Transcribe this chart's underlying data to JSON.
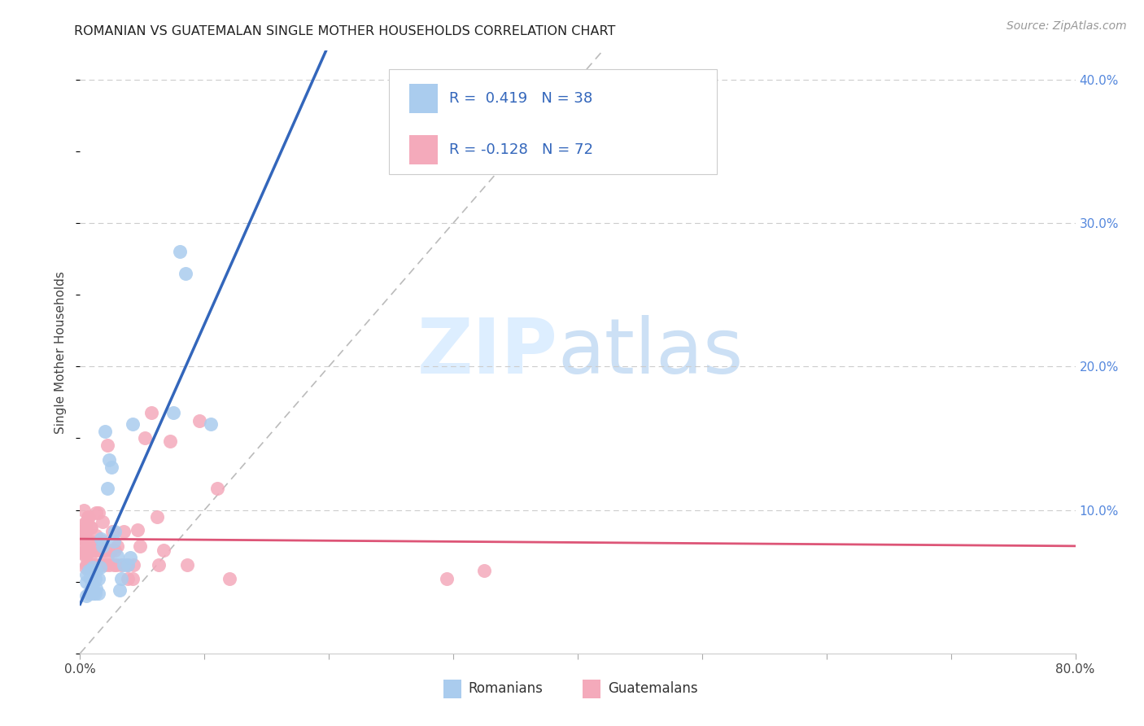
{
  "title": "ROMANIAN VS GUATEMALAN SINGLE MOTHER HOUSEHOLDS CORRELATION CHART",
  "source": "Source: ZipAtlas.com",
  "ylabel": "Single Mother Households",
  "xlim": [
    0.0,
    0.8
  ],
  "ylim": [
    0.0,
    0.42
  ],
  "x_ticks": [
    0.0,
    0.1,
    0.2,
    0.3,
    0.4,
    0.5,
    0.6,
    0.7,
    0.8
  ],
  "x_tick_labels": [
    "0.0%",
    "",
    "",
    "",
    "",
    "",
    "",
    "",
    "80.0%"
  ],
  "y_ticks_right": [
    0.0,
    0.1,
    0.2,
    0.3,
    0.4
  ],
  "y_tick_labels_right": [
    "",
    "10.0%",
    "20.0%",
    "30.0%",
    "40.0%"
  ],
  "grid_color": "#cccccc",
  "background_color": "#ffffff",
  "romanian_color": "#aaccee",
  "guatemalan_color": "#f4aabb",
  "trendline_romanian_color": "#3366bb",
  "trendline_guatemalan_color": "#dd5577",
  "diagonal_color": "#bbbbbb",
  "legend_label_romanian": "R =  0.419   N = 38",
  "legend_label_guatemalan": "R = -0.128   N = 72",
  "legend_bottom_romanian": "Romanians",
  "legend_bottom_guatemalan": "Guatemalans",
  "romanian_x": [
    0.005,
    0.005,
    0.005,
    0.007,
    0.007,
    0.008,
    0.008,
    0.009,
    0.009,
    0.01,
    0.01,
    0.01,
    0.012,
    0.012,
    0.013,
    0.013,
    0.015,
    0.015,
    0.016,
    0.017,
    0.018,
    0.02,
    0.022,
    0.023,
    0.025,
    0.027,
    0.028,
    0.03,
    0.032,
    0.033,
    0.035,
    0.038,
    0.04,
    0.042,
    0.075,
    0.08,
    0.085,
    0.105
  ],
  "romanian_y": [
    0.04,
    0.05,
    0.055,
    0.042,
    0.058,
    0.043,
    0.052,
    0.046,
    0.058,
    0.042,
    0.048,
    0.06,
    0.042,
    0.052,
    0.045,
    0.058,
    0.042,
    0.052,
    0.06,
    0.08,
    0.075,
    0.155,
    0.115,
    0.135,
    0.13,
    0.078,
    0.085,
    0.068,
    0.044,
    0.052,
    0.062,
    0.062,
    0.067,
    0.16,
    0.168,
    0.28,
    0.265,
    0.16
  ],
  "guatemalan_x": [
    0.002,
    0.002,
    0.002,
    0.002,
    0.003,
    0.003,
    0.003,
    0.003,
    0.004,
    0.004,
    0.004,
    0.004,
    0.004,
    0.005,
    0.005,
    0.005,
    0.005,
    0.006,
    0.006,
    0.006,
    0.007,
    0.007,
    0.007,
    0.008,
    0.008,
    0.008,
    0.009,
    0.009,
    0.01,
    0.01,
    0.012,
    0.012,
    0.013,
    0.013,
    0.015,
    0.015,
    0.015,
    0.017,
    0.017,
    0.018,
    0.018,
    0.02,
    0.02,
    0.022,
    0.022,
    0.023,
    0.025,
    0.026,
    0.027,
    0.028,
    0.029,
    0.03,
    0.033,
    0.035,
    0.038,
    0.038,
    0.042,
    0.043,
    0.046,
    0.048,
    0.052,
    0.057,
    0.062,
    0.063,
    0.067,
    0.072,
    0.086,
    0.096,
    0.11,
    0.12,
    0.295,
    0.325
  ],
  "guatemalan_y": [
    0.07,
    0.075,
    0.08,
    0.085,
    0.08,
    0.085,
    0.09,
    0.1,
    0.06,
    0.068,
    0.072,
    0.08,
    0.088,
    0.062,
    0.07,
    0.08,
    0.092,
    0.062,
    0.07,
    0.095,
    0.062,
    0.072,
    0.095,
    0.068,
    0.078,
    0.088,
    0.062,
    0.088,
    0.062,
    0.075,
    0.062,
    0.072,
    0.082,
    0.098,
    0.062,
    0.072,
    0.098,
    0.062,
    0.072,
    0.078,
    0.092,
    0.062,
    0.072,
    0.068,
    0.145,
    0.062,
    0.072,
    0.085,
    0.062,
    0.072,
    0.062,
    0.075,
    0.062,
    0.085,
    0.052,
    0.062,
    0.052,
    0.062,
    0.086,
    0.075,
    0.15,
    0.168,
    0.095,
    0.062,
    0.072,
    0.148,
    0.062,
    0.162,
    0.115,
    0.052,
    0.052,
    0.058
  ]
}
